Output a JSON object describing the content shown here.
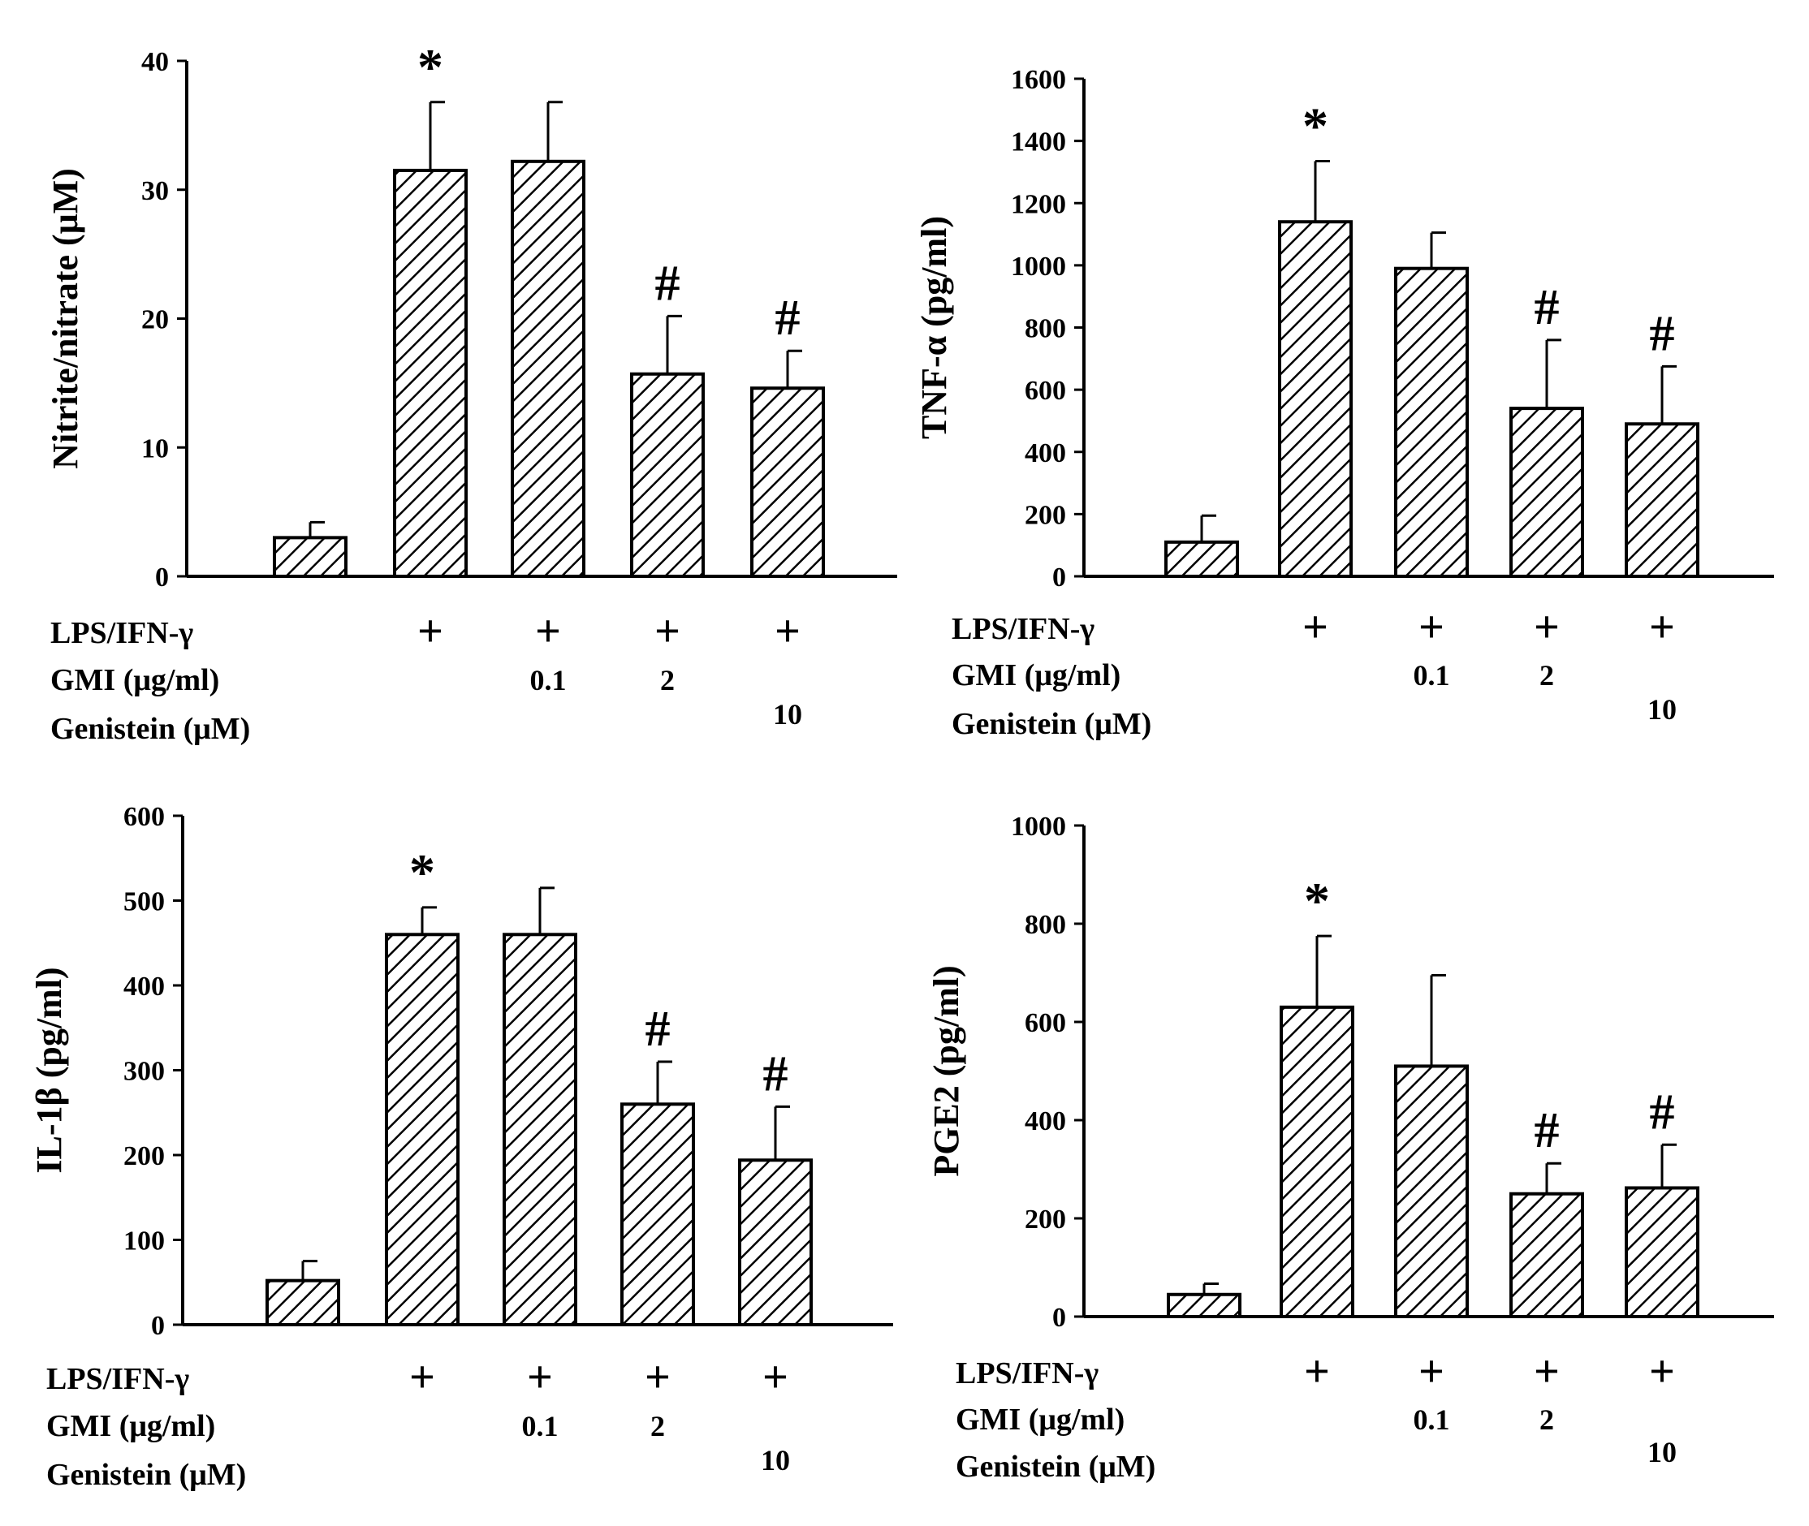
{
  "condition_labels": {
    "lps": "LPS/IFN-γ",
    "gmi": "GMI (μg/ml)",
    "genistein": "Genistein (μM)",
    "plus": "+",
    "gmi_values": [
      "",
      "",
      "0.1",
      "2",
      ""
    ],
    "genistein_values": [
      "",
      "",
      "",
      "",
      "10"
    ],
    "lps_flags": [
      false,
      true,
      true,
      true,
      true
    ]
  },
  "chart_data": [
    {
      "type": "bar",
      "ylabel": "Nitrite/nitrate (μM)",
      "ylim": [
        0,
        40
      ],
      "yticks": [
        0,
        10,
        20,
        30,
        40
      ],
      "values": [
        3.0,
        31.5,
        32.2,
        15.7,
        14.6
      ],
      "errors": [
        1.2,
        5.3,
        4.6,
        4.5,
        2.9
      ],
      "annotations": [
        "",
        "*",
        "",
        "#",
        "#"
      ],
      "grid": false
    },
    {
      "type": "bar",
      "ylabel": "TNF-α (pg/ml)",
      "ylim": [
        0,
        1600
      ],
      "yticks": [
        0,
        200,
        400,
        600,
        800,
        1000,
        1200,
        1400,
        1600
      ],
      "values": [
        110,
        1140,
        990,
        540,
        490
      ],
      "errors": [
        85,
        195,
        115,
        220,
        185
      ],
      "annotations": [
        "",
        "*",
        "",
        "#",
        "#"
      ],
      "grid": false
    },
    {
      "type": "bar",
      "ylabel": "IL-1β (pg/ml)",
      "ylim": [
        0,
        600
      ],
      "yticks": [
        0,
        100,
        200,
        300,
        400,
        500,
        600
      ],
      "values": [
        52,
        460,
        460,
        260,
        194
      ],
      "errors": [
        23,
        32,
        55,
        50,
        63
      ],
      "annotations": [
        "",
        "*",
        "",
        "#",
        "#"
      ],
      "grid": false
    },
    {
      "type": "bar",
      "ylabel": "PGE2 (pg/ml)",
      "ylim": [
        0,
        1000
      ],
      "yticks": [
        0,
        200,
        400,
        600,
        800,
        1000
      ],
      "values": [
        45,
        630,
        510,
        250,
        262
      ],
      "errors": [
        22,
        145,
        185,
        62,
        88
      ],
      "annotations": [
        "",
        "*",
        "",
        "#",
        "#"
      ],
      "grid": false
    }
  ]
}
